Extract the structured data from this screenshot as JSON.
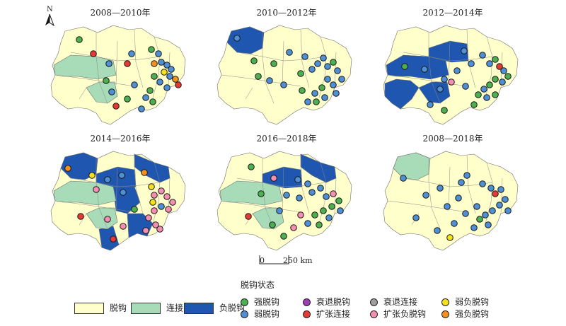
{
  "compass": {
    "label": "N"
  },
  "panels": [
    {
      "title": "2008—2010年"
    },
    {
      "title": "2010—2012年"
    },
    {
      "title": "2012—2014年"
    },
    {
      "title": "2014—2016年"
    },
    {
      "title": "2016—2018年"
    },
    {
      "title": "2008—2018年"
    }
  ],
  "scale": {
    "zero": "0",
    "distance": "250 km"
  },
  "legend": {
    "title": "脱钩状态",
    "regions": [
      {
        "label": "脱钩",
        "color": "#ffffcc"
      },
      {
        "label": "连接",
        "color": "#a8dcb8"
      },
      {
        "label": "负脱钩",
        "color": "#1f56b0"
      }
    ],
    "points": [
      {
        "label": "强脱钩",
        "color": "#4caf50"
      },
      {
        "label": "弱脱钩",
        "color": "#4f8fd6"
      },
      {
        "label": "衰退脱钩",
        "color": "#9b3fb5"
      },
      {
        "label": "扩张连接",
        "color": "#e53935"
      },
      {
        "label": "衰退连接",
        "color": "#9e9e9e"
      },
      {
        "label": "扩张负脱钩",
        "color": "#f48fb1"
      },
      {
        "label": "弱负脱钩",
        "color": "#f5e11b"
      },
      {
        "label": "强负脱钩",
        "color": "#f5901e"
      }
    ]
  }
}
